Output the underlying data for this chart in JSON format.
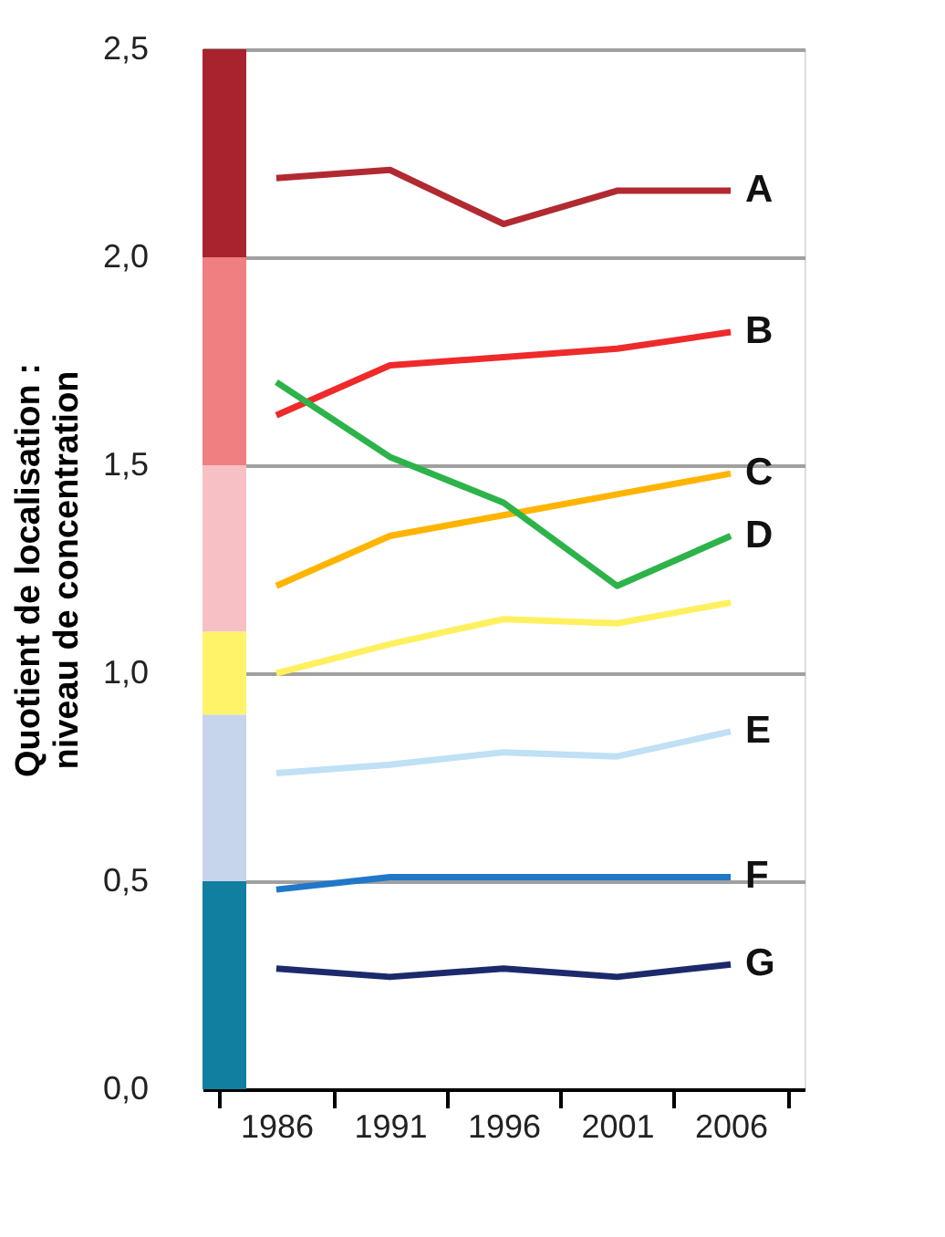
{
  "chart_data": {
    "type": "line",
    "ylabel": "Quotient de localisation :\nniveau de concentration",
    "categories": [
      "1986",
      "1991",
      "1996",
      "2001",
      "2006"
    ],
    "series": [
      {
        "name": "A",
        "color": "#b22a31",
        "values": [
          2.19,
          2.21,
          2.08,
          2.16,
          2.16
        ]
      },
      {
        "name": "B",
        "color": "#ee2a2a",
        "values": [
          1.62,
          1.74,
          1.76,
          1.78,
          1.82
        ]
      },
      {
        "name": "C",
        "color": "#ffb400",
        "values": [
          1.21,
          1.33,
          1.38,
          1.43,
          1.48
        ]
      },
      {
        "name": "D",
        "color": "#2db34a",
        "values": [
          1.7,
          1.52,
          1.41,
          1.21,
          1.33
        ]
      },
      {
        "color": "#fff060",
        "values": [
          1.0,
          1.07,
          1.13,
          1.12,
          1.17
        ]
      },
      {
        "name": "E",
        "color": "#bfe0f5",
        "values": [
          0.76,
          0.78,
          0.81,
          0.8,
          0.86
        ]
      },
      {
        "name": "F",
        "color": "#1f78c8",
        "values": [
          0.48,
          0.51,
          0.51,
          0.51,
          0.51
        ]
      },
      {
        "name": "G",
        "color": "#1c2a6b",
        "values": [
          0.29,
          0.27,
          0.29,
          0.27,
          0.3
        ]
      }
    ],
    "ylim": [
      0,
      2.5
    ],
    "yticks": [
      {
        "value": 0,
        "label": "0,0"
      },
      {
        "value": 0.5,
        "label": "0,5"
      },
      {
        "value": 1,
        "label": "1,0"
      },
      {
        "value": 1.5,
        "label": "1,5"
      },
      {
        "value": 2,
        "label": "2,0"
      },
      {
        "value": 2.5,
        "label": "2,5"
      }
    ],
    "bands": [
      {
        "axis": "y",
        "from": 2.0,
        "to": 2.5,
        "color": "#a8232e"
      },
      {
        "axis": "y",
        "from": 1.5,
        "to": 2.0,
        "color": "#ef7f80"
      },
      {
        "axis": "y",
        "from": 1.1,
        "to": 1.5,
        "color": "#f7c0c4"
      },
      {
        "axis": "y",
        "from": 0.9,
        "to": 1.1,
        "color": "#fff36a"
      },
      {
        "axis": "y",
        "from": 0.5,
        "to": 0.9,
        "color": "#c6d4ec"
      },
      {
        "axis": "y",
        "from": 0.0,
        "to": 0.5,
        "color": "#117f9f"
      }
    ],
    "grid": "y",
    "legend": false,
    "marker": "none",
    "line_style": "solid"
  }
}
